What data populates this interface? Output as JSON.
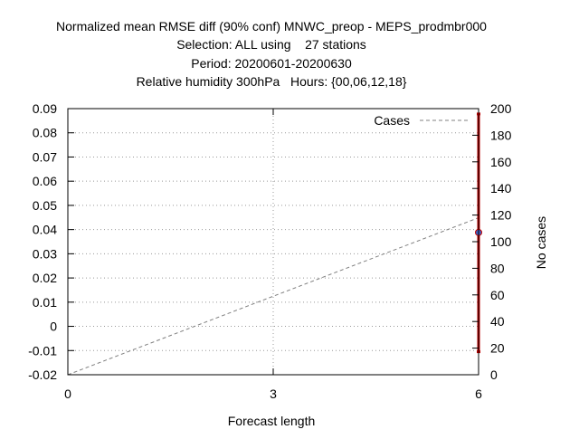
{
  "chart_data": {
    "type": "line",
    "title_lines": [
      "Normalized mean RMSE diff (90% conf) MNWC_preop - MEPS_prodmbr000",
      "Selection: ALL using    27 stations",
      "Period: 20200601-20200630",
      "Relative humidity 300hPa   Hours: {00,06,12,18}"
    ],
    "xlabel": "Forecast length",
    "ylabel": "",
    "y2label": "No cases",
    "xlim": [
      0,
      6
    ],
    "ylim": [
      -0.02,
      0.09
    ],
    "y2lim": [
      0,
      200
    ],
    "x_ticks": [
      "0",
      "3",
      "6"
    ],
    "x_tick_values": [
      0,
      3,
      6
    ],
    "y_ticks": [
      "-0.02",
      "-0.01",
      "0",
      "0.01",
      "0.02",
      "0.03",
      "0.04",
      "0.05",
      "0.06",
      "0.07",
      "0.08",
      "0.09"
    ],
    "y_tick_values": [
      -0.02,
      -0.01,
      0,
      0.01,
      0.02,
      0.03,
      0.04,
      0.05,
      0.06,
      0.07,
      0.08,
      0.09
    ],
    "y2_ticks": [
      "0",
      "20",
      "40",
      "60",
      "80",
      "100",
      "120",
      "140",
      "160",
      "180",
      "200"
    ],
    "y2_tick_values": [
      0,
      20,
      40,
      60,
      80,
      100,
      120,
      140,
      160,
      180,
      200
    ],
    "grid": true,
    "legend": {
      "position": "top-right",
      "entries": [
        "Cases"
      ]
    },
    "series": [
      {
        "name": "Cases",
        "axis": "y2",
        "style": "dashed",
        "color": "#808080",
        "x": [
          0,
          6
        ],
        "values": [
          0,
          118
        ]
      }
    ],
    "rmse_diff": {
      "axis": "y",
      "color": "#c00000",
      "marker_color": "#4060c0",
      "points": [
        {
          "x": 6,
          "value": 0.0388,
          "lower": -0.0105,
          "upper": 0.0878
        }
      ]
    }
  }
}
